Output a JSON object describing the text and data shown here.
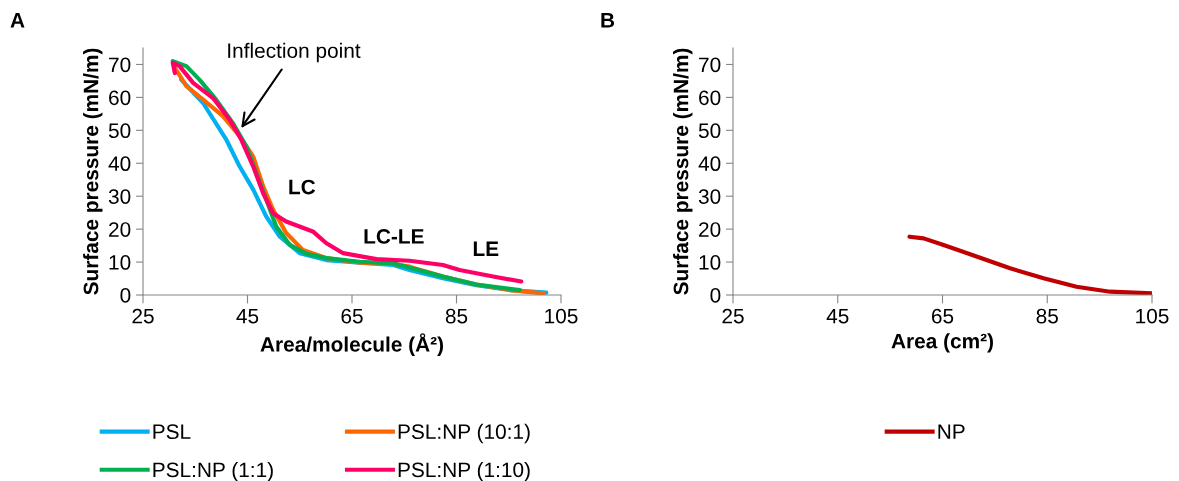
{
  "chart_data": [
    {
      "type": "line",
      "title": "A",
      "xlabel": "Area/molecule (Å²)",
      "ylabel": "Surface pressure (mN/m)",
      "xlim": [
        25,
        105
      ],
      "xticks": [
        25,
        45,
        65,
        85,
        105
      ],
      "ylim": [
        0,
        75
      ],
      "yticks": [
        0,
        10,
        20,
        30,
        40,
        50,
        60,
        70
      ],
      "grid": false,
      "legend": "bottom",
      "marker": "none",
      "line_style": "solid",
      "series": [
        {
          "name": "PSL",
          "color": "#00b0f0",
          "x": [
            32.3,
            36.5,
            41,
            43.5,
            46.1,
            48.6,
            51.2,
            55,
            60.1,
            66.5,
            72.9,
            76,
            82.4,
            88.8,
            95.2,
            102.2
          ],
          "values": [
            65.4,
            58.3,
            47,
            39,
            32,
            23.8,
            17.7,
            12.7,
            10.6,
            9.8,
            9.1,
            7.6,
            5.1,
            3,
            1.5,
            0.7
          ]
        },
        {
          "name": "PSL:NP (10:1)",
          "color": "#ff6600",
          "x": [
            31.1,
            33.3,
            36.5,
            40.3,
            43.5,
            46.1,
            48,
            49.9,
            52.4,
            55.6,
            60.1,
            66.5,
            72.9,
            76,
            82.4,
            88.8,
            95.2,
            101.6
          ],
          "values": [
            69,
            63.4,
            59.3,
            54.3,
            48.2,
            42,
            33,
            25.9,
            18.8,
            13.7,
            11.2,
            9.8,
            9.4,
            8.6,
            5.6,
            3.2,
            1.5,
            0.5
          ]
        },
        {
          "name": "PSL:NP (1:1)",
          "color": "#00b050",
          "x": [
            30.7,
            33.3,
            35.8,
            39,
            42.2,
            44.8,
            46.7,
            48.6,
            50.5,
            53.1,
            56.3,
            60.1,
            66.5,
            72.9,
            75.4,
            82.4,
            88.8,
            97.1
          ],
          "values": [
            71,
            69.5,
            65.4,
            59.3,
            52.2,
            45.1,
            37,
            28.9,
            20.8,
            15.2,
            12.5,
            11.2,
            10.1,
            9.6,
            8.6,
            5.6,
            3.2,
            1.5
          ]
        },
        {
          "name": "PSL:NP (1:10)",
          "color": "#ff0066",
          "x": [
            31.1,
            30.7,
            32,
            34.6,
            38.4,
            41.6,
            43.8,
            46.1,
            48,
            49.9,
            52.4,
            57.5,
            60.1,
            63.3,
            69.7,
            76,
            82.4,
            85.6,
            92,
            97.4
          ],
          "values": [
            67.4,
            70.5,
            69.5,
            64.4,
            59.8,
            53.2,
            47.2,
            39,
            30.9,
            24.8,
            22.3,
            19.3,
            15.7,
            12.7,
            10.9,
            10.4,
            9.1,
            7.6,
            5.6,
            4.1
          ]
        }
      ],
      "annotations": [
        {
          "text": "Inflection point",
          "x": 43.8,
          "y": 50.7
        },
        "LC",
        "LC-LE",
        "LE"
      ]
    },
    {
      "type": "line",
      "title": "B",
      "xlabel": "Area (cm²)",
      "ylabel": "Surface pressure (mN/m)",
      "xlim": [
        25,
        105
      ],
      "xticks": [
        25,
        45,
        65,
        85,
        105
      ],
      "ylim": [
        0,
        75
      ],
      "yticks": [
        0,
        10,
        20,
        30,
        40,
        50,
        60,
        70
      ],
      "grid": false,
      "legend": "bottom",
      "marker": "none",
      "line_style": "solid",
      "series": [
        {
          "name": "NP",
          "color": "#c00000",
          "x": [
            58.7,
            61.4,
            65.2,
            71.5,
            77.9,
            84.3,
            90.6,
            97,
            105
          ],
          "values": [
            17.7,
            17.2,
            15.2,
            11.7,
            8.1,
            5.1,
            2.5,
            1,
            0.5
          ]
        }
      ]
    }
  ]
}
